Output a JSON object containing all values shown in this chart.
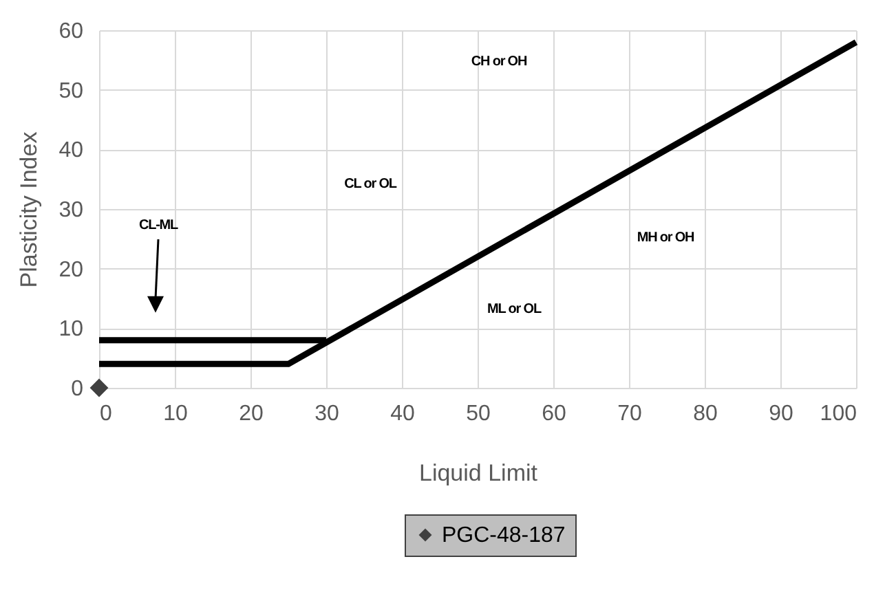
{
  "chart_data": {
    "type": "line",
    "xlabel": "Liquid Limit",
    "ylabel": "Plasticity Index",
    "xlim": [
      0,
      100
    ],
    "xticks": [
      0,
      10,
      20,
      30,
      40,
      50,
      60,
      70,
      80,
      90,
      100
    ],
    "ylim": [
      0,
      60
    ],
    "yticks": [
      0,
      10,
      20,
      30,
      40,
      50,
      60
    ],
    "grid": true,
    "legend": "bottom",
    "series": [
      {
        "color": "#000000",
        "x": [
          0,
          25,
          100
        ],
        "values": [
          4,
          4,
          58
        ]
      },
      {
        "color": "#000000",
        "x": [
          0,
          30
        ],
        "values": [
          8,
          8
        ]
      },
      {
        "type": "scatter",
        "name": "PGC-48-187",
        "color": "#404040",
        "marker": "diamond",
        "x": [
          0
        ],
        "values": [
          0
        ]
      }
    ],
    "annotations": [
      "CH or OH",
      "CL or OL",
      "CL-ML",
      "MH or OH",
      "ML or OL"
    ]
  }
}
